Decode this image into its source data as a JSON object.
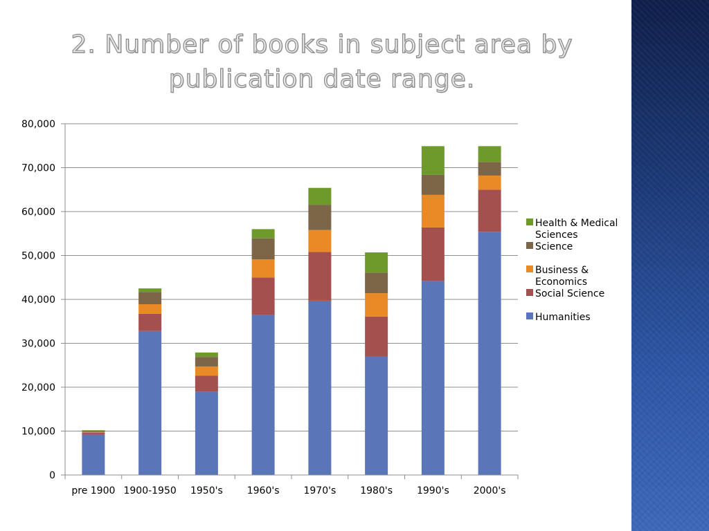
{
  "slide": {
    "title_line1": "2. Number of books in subject area by",
    "title_line2": "publication date range."
  },
  "chart_data": {
    "type": "bar",
    "stacked": true,
    "title": "2. Number of books in subject area by publication date range.",
    "xlabel": "",
    "ylabel": "",
    "ylim": [
      0,
      80000
    ],
    "yticks": [
      0,
      10000,
      20000,
      30000,
      40000,
      50000,
      60000,
      70000,
      80000
    ],
    "ytick_labels": [
      "0",
      "10,000",
      "20,000",
      "30,000",
      "40,000",
      "50,000",
      "60,000",
      "70,000",
      "80,000"
    ],
    "grid": true,
    "legend_position": "right",
    "categories": [
      "pre 1900",
      "1900-1950",
      "1950's",
      "1960's",
      "1970's",
      "1980's",
      "1990's",
      "2000's"
    ],
    "series": [
      {
        "name": "Humanities",
        "color": "#5b76b8",
        "values": [
          9200,
          32800,
          19000,
          36400,
          39700,
          27000,
          44200,
          55400
        ]
      },
      {
        "name": "Social Science",
        "color": "#a4504e",
        "values": [
          400,
          3900,
          3600,
          8600,
          11100,
          9100,
          12200,
          9600
        ]
      },
      {
        "name": "Business & Economics",
        "color": "#e98a26",
        "values": [
          200,
          2200,
          2100,
          4100,
          5000,
          5300,
          7400,
          3200
        ]
      },
      {
        "name": "Science",
        "color": "#7d6548",
        "values": [
          250,
          2800,
          2200,
          4800,
          5700,
          4700,
          4600,
          3100
        ]
      },
      {
        "name": "Health & Medical Sciences",
        "color": "#6e9a2c",
        "values": [
          150,
          800,
          1000,
          2100,
          3900,
          4600,
          6500,
          3600
        ]
      }
    ],
    "legend_order": [
      {
        "label_lines": [
          "Health & Medical",
          "Sciences"
        ]
      },
      {
        "label_lines": [
          "Science"
        ]
      },
      {
        "label_lines": [
          "Business &",
          "Economics"
        ]
      },
      {
        "label_lines": [
          "Social Science"
        ]
      },
      {
        "label_lines": [
          "Humanities"
        ]
      }
    ]
  }
}
